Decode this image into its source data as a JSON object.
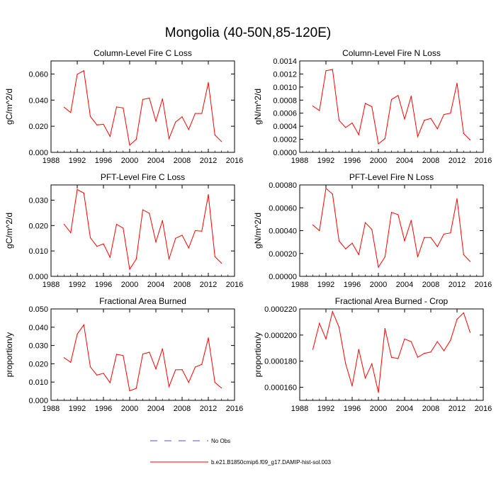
{
  "figure": {
    "title": "Mongolia (40-50N,85-120E)",
    "line_color": "#ff0000",
    "obs_color": "#5a4fd6",
    "legend": [
      {
        "label": "No Obs",
        "style": "dashed",
        "color": "#5a4fd6"
      },
      {
        "label": "b.e21.B1850cmip6.f09_g17.DAMIP-hist-sol.003",
        "style": "solid",
        "color": "#ff0000"
      }
    ]
  },
  "chart_data": [
    {
      "type": "line",
      "title": "Column-Level Fire C Loss",
      "ylabel": "gC/m^2/d",
      "xlim": [
        1988,
        2016
      ],
      "ylim": [
        0,
        0.07
      ],
      "x_ticks": [
        "1988",
        "1992",
        "1996",
        "2000",
        "2004",
        "2008",
        "2012",
        "2016"
      ],
      "y_ticks": [
        "0.000",
        "0.020",
        "0.040",
        "0.060"
      ],
      "y_tick_values": [
        0,
        0.02,
        0.04,
        0.06
      ],
      "x": [
        1990,
        1991,
        1992,
        1993,
        1994,
        1995,
        1996,
        1997,
        1998,
        1999,
        2000,
        2001,
        2002,
        2003,
        2004,
        2005,
        2006,
        2007,
        2008,
        2009,
        2010,
        2011,
        2012,
        2013,
        2014
      ],
      "values": [
        0.0345,
        0.0305,
        0.0598,
        0.0625,
        0.0275,
        0.021,
        0.0215,
        0.0122,
        0.0348,
        0.034,
        0.0055,
        0.01,
        0.0405,
        0.0415,
        0.0238,
        0.041,
        0.0105,
        0.0232,
        0.0272,
        0.0175,
        0.0298,
        0.0298,
        0.0535,
        0.0133,
        0.0083
      ]
    },
    {
      "type": "line",
      "title": "Column-Level Fire N Loss",
      "ylabel": "gN/m^2/d",
      "xlim": [
        1988,
        2016
      ],
      "ylim": [
        0,
        0.0014
      ],
      "x_ticks": [
        "1988",
        "1992",
        "1996",
        "2000",
        "2004",
        "2008",
        "2012",
        "2016"
      ],
      "y_ticks": [
        "0.0000",
        "0.0002",
        "0.0004",
        "0.0006",
        "0.0008",
        "0.0010",
        "0.0012",
        "0.0014"
      ],
      "y_tick_values": [
        0,
        0.0002,
        0.0004,
        0.0006,
        0.0008,
        0.001,
        0.0012,
        0.0014
      ],
      "x": [
        1990,
        1991,
        1992,
        1993,
        1994,
        1995,
        1996,
        1997,
        1998,
        1999,
        2000,
        2001,
        2002,
        2003,
        2004,
        2005,
        2006,
        2007,
        2008,
        2009,
        2010,
        2011,
        2012,
        2013,
        2014
      ],
      "values": [
        0.00071,
        0.00064,
        0.00125,
        0.00127,
        0.00049,
        0.00038,
        0.00045,
        0.00027,
        0.00075,
        0.0007,
        0.00013,
        0.00021,
        0.00081,
        0.00087,
        0.00051,
        0.00086,
        0.00024,
        0.00049,
        0.00052,
        0.00036,
        0.00058,
        0.0006,
        0.00106,
        0.00029,
        0.00019
      ]
    },
    {
      "type": "line",
      "title": "PFT-Level Fire C Loss",
      "ylabel": "gC/m^2/d",
      "xlim": [
        1988,
        2016
      ],
      "ylim": [
        0,
        0.036
      ],
      "x_ticks": [
        "1988",
        "1992",
        "1996",
        "2000",
        "2004",
        "2008",
        "2012",
        "2016"
      ],
      "y_ticks": [
        "0.000",
        "0.010",
        "0.020",
        "0.030"
      ],
      "y_tick_values": [
        0,
        0.01,
        0.02,
        0.03
      ],
      "x": [
        1990,
        1991,
        1992,
        1993,
        1994,
        1995,
        1996,
        1997,
        1998,
        1999,
        2000,
        2001,
        2002,
        2003,
        2004,
        2005,
        2006,
        2007,
        2008,
        2009,
        2010,
        2011,
        2012,
        2013,
        2014
      ],
      "values": [
        0.0205,
        0.0172,
        0.0342,
        0.0328,
        0.0152,
        0.0118,
        0.0128,
        0.0075,
        0.0205,
        0.019,
        0.0028,
        0.0068,
        0.0262,
        0.0248,
        0.0135,
        0.022,
        0.0068,
        0.015,
        0.0162,
        0.0112,
        0.018,
        0.0178,
        0.0322,
        0.0078,
        0.0052
      ]
    },
    {
      "type": "line",
      "title": "PFT-Level Fire N Loss",
      "ylabel": "gN/m^2/d",
      "xlim": [
        1988,
        2016
      ],
      "ylim": [
        0,
        0.0008
      ],
      "x_ticks": [
        "1988",
        "1992",
        "1996",
        "2000",
        "2004",
        "2008",
        "2012",
        "2016"
      ],
      "y_ticks": [
        "0.00000",
        "0.00020",
        "0.00040",
        "0.00060",
        "0.00080"
      ],
      "y_tick_values": [
        0,
        0.0002,
        0.0004,
        0.0006,
        0.0008
      ],
      "x": [
        1990,
        1991,
        1992,
        1993,
        1994,
        1995,
        1996,
        1997,
        1998,
        1999,
        2000,
        2001,
        2002,
        2003,
        2004,
        2005,
        2006,
        2007,
        2008,
        2009,
        2010,
        2011,
        2012,
        2013,
        2014
      ],
      "values": [
        0.00045,
        0.0004,
        0.00077,
        0.00072,
        0.00031,
        0.00024,
        0.00029,
        0.00019,
        0.00047,
        0.00041,
        8e-05,
        0.00017,
        0.00056,
        0.00054,
        0.00031,
        0.00049,
        0.00017,
        0.00034,
        0.00034,
        0.00026,
        0.00037,
        0.00038,
        0.00068,
        0.00019,
        0.00013
      ]
    },
    {
      "type": "line",
      "title": "Fractional Area Burned",
      "ylabel": "proportion/y",
      "xlim": [
        1988,
        2016
      ],
      "ylim": [
        0,
        0.05
      ],
      "x_ticks": [
        "1988",
        "1992",
        "1996",
        "2000",
        "2004",
        "2008",
        "2012",
        "2016"
      ],
      "y_ticks": [
        "0.000",
        "0.010",
        "0.020",
        "0.030",
        "0.040",
        "0.050"
      ],
      "y_tick_values": [
        0,
        0.01,
        0.02,
        0.03,
        0.04,
        0.05
      ],
      "x": [
        1990,
        1991,
        1992,
        1993,
        1994,
        1995,
        1996,
        1997,
        1998,
        1999,
        2000,
        2001,
        2002,
        2003,
        2004,
        2005,
        2006,
        2007,
        2008,
        2009,
        2010,
        2011,
        2012,
        2013,
        2014
      ],
      "values": [
        0.0233,
        0.0208,
        0.0362,
        0.0413,
        0.0183,
        0.0138,
        0.0148,
        0.0097,
        0.0252,
        0.0245,
        0.0052,
        0.0066,
        0.0253,
        0.0263,
        0.0172,
        0.0282,
        0.0075,
        0.0167,
        0.0168,
        0.0098,
        0.0182,
        0.0197,
        0.0342,
        0.0098,
        0.0068
      ]
    },
    {
      "type": "line",
      "title": "Fractional Area Burned - Crop",
      "ylabel": "proportion/y",
      "xlim": [
        1988,
        2016
      ],
      "ylim": [
        0.00015,
        0.00022
      ],
      "x_ticks": [
        "1988",
        "1992",
        "1996",
        "2000",
        "2004",
        "2008",
        "2012",
        "2016"
      ],
      "y_ticks": [
        "0.000160",
        "0.000180",
        "0.000200",
        "0.000220"
      ],
      "y_tick_values": [
        0.00016,
        0.00018,
        0.0002,
        0.00022
      ],
      "x": [
        1990,
        1991,
        1992,
        1993,
        1994,
        1995,
        1996,
        1997,
        1998,
        1999,
        2000,
        2001,
        2002,
        2003,
        2004,
        2005,
        2006,
        2007,
        2008,
        2009,
        2010,
        2011,
        2012,
        2013,
        2014
      ],
      "values": [
        0.000189,
        0.000209,
        0.000197,
        0.000218,
        0.000206,
        0.000178,
        0.000161,
        0.000189,
        0.000167,
        0.000178,
        0.000156,
        0.000205,
        0.000183,
        0.000182,
        0.000197,
        0.000195,
        0.000183,
        0.000186,
        0.000187,
        0.000195,
        0.000188,
        0.000196,
        0.000212,
        0.000217,
        0.000202
      ]
    }
  ]
}
